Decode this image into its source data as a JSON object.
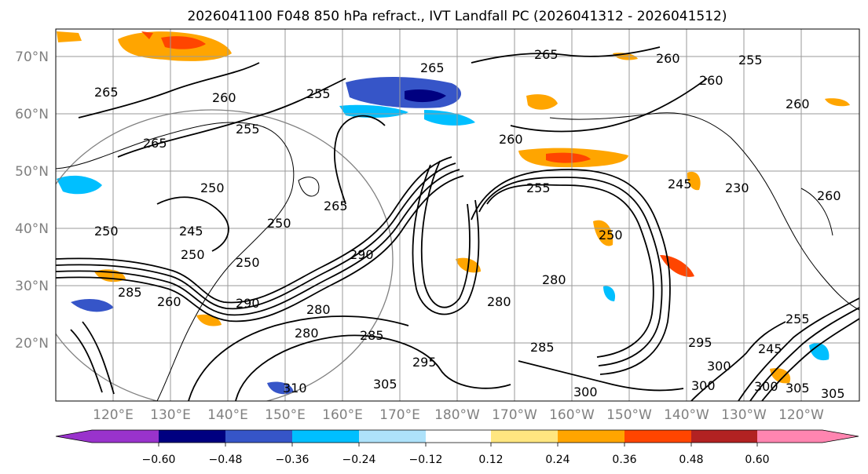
{
  "title": "2026041100 F048 850 hPa refract., IVT Landfall PC (2026041312 - 2026041512)",
  "map": {
    "lat_labels": [
      "70°N",
      "60°N",
      "50°N",
      "40°N",
      "30°N",
      "20°N"
    ],
    "lon_labels": [
      "120°E",
      "130°E",
      "140°E",
      "150°E",
      "160°E",
      "170°E",
      "180°W",
      "170°W",
      "160°W",
      "150°W",
      "140°W",
      "130°W",
      "120°W"
    ],
    "contour_labels": [
      "265",
      "265",
      "260",
      "260",
      "255",
      "260",
      "265",
      "260",
      "250",
      "255",
      "255",
      "245",
      "250",
      "265",
      "265",
      "260",
      "250",
      "245",
      "255",
      "250",
      "280",
      "280",
      "285",
      "280",
      "260",
      "290",
      "250",
      "285",
      "295",
      "300",
      "300",
      "305",
      "310",
      "305",
      "300",
      "295",
      "245",
      "255",
      "260",
      "250",
      "230",
      "300",
      "305",
      "280",
      "285",
      "290"
    ]
  },
  "colorbar": {
    "ticks": [
      "−0.60",
      "−0.48",
      "−0.36",
      "−0.24",
      "−0.12",
      "0.12",
      "0.24",
      "0.36",
      "0.48",
      "0.60"
    ],
    "colors": [
      "#9933cc",
      "#000080",
      "#3655c8",
      "#00bfff",
      "#aee2fa",
      "#ffffff",
      "#ffe680",
      "#ffa500",
      "#ff4500",
      "#b22222",
      "#ff85b0"
    ]
  }
}
